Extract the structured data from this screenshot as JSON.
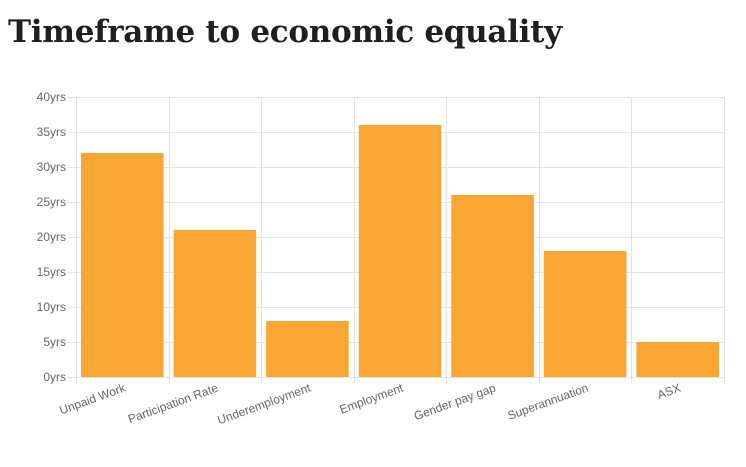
{
  "chart_data": {
    "type": "bar",
    "title": "Timeframe to economic equality",
    "xlabel": "",
    "ylabel": "",
    "categories": [
      "Unpaid Work",
      "Participation Rate",
      "Underemployment",
      "Employment",
      "Gender pay gap",
      "Superannuation",
      "ASX"
    ],
    "values": [
      32,
      21,
      8,
      36,
      26,
      18,
      5
    ],
    "unit_suffix": "yrs",
    "ylim": [
      0,
      40
    ],
    "yticks": [
      0,
      5,
      10,
      15,
      20,
      25,
      30,
      35,
      40
    ],
    "grid": true,
    "legend": "none",
    "colors": {
      "bar": "#F9A634",
      "grid": "#E3E3E3",
      "tick_text": "#666666"
    }
  }
}
